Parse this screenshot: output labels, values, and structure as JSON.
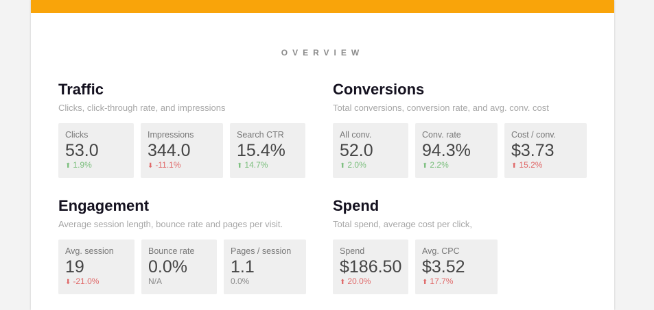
{
  "overview_label": "OVERVIEW",
  "colors": {
    "accent": "#f9a40a",
    "good": "#7cbf7e",
    "bad": "#e06a6a"
  },
  "sections": {
    "traffic": {
      "title": "Traffic",
      "subtitle": "Clicks, click-through rate, and impressions",
      "tiles": [
        {
          "label": "Clicks",
          "value": "53.0",
          "delta": "1.9%",
          "direction": "up",
          "status": "good"
        },
        {
          "label": "Impressions",
          "value": "344.0",
          "delta": "-11.1%",
          "direction": "down",
          "status": "bad"
        },
        {
          "label": "Search CTR",
          "value": "15.4%",
          "delta": "14.7%",
          "direction": "up",
          "status": "good"
        }
      ]
    },
    "conversions": {
      "title": "Conversions",
      "subtitle": "Total conversions, conversion rate, and avg. conv. cost",
      "tiles": [
        {
          "label": "All conv.",
          "value": "52.0",
          "delta": "2.0%",
          "direction": "up",
          "status": "good"
        },
        {
          "label": "Conv. rate",
          "value": "94.3%",
          "delta": "2.2%",
          "direction": "up",
          "status": "good"
        },
        {
          "label": "Cost / conv.",
          "value": "$3.73",
          "delta": "15.2%",
          "direction": "up",
          "status": "bad"
        }
      ]
    },
    "engagement": {
      "title": "Engagement",
      "subtitle": "Average session length, bounce rate and pages per visit.",
      "tiles": [
        {
          "label": "Avg. session",
          "value": "19",
          "delta": "-21.0%",
          "direction": "down",
          "status": "bad"
        },
        {
          "label": "Bounce rate",
          "value": "0.0%",
          "delta": "N/A",
          "direction": "none",
          "status": "neutral"
        },
        {
          "label": "Pages / session",
          "value": "1.1",
          "delta": "0.0%",
          "direction": "none",
          "status": "neutral"
        }
      ]
    },
    "spend": {
      "title": "Spend",
      "subtitle": "Total spend, average cost per click,",
      "tiles": [
        {
          "label": "Spend",
          "value": "$186.50",
          "delta": "20.0%",
          "direction": "up",
          "status": "bad"
        },
        {
          "label": "Avg. CPC",
          "value": "$3.52",
          "delta": "17.7%",
          "direction": "up",
          "status": "bad"
        }
      ]
    }
  }
}
